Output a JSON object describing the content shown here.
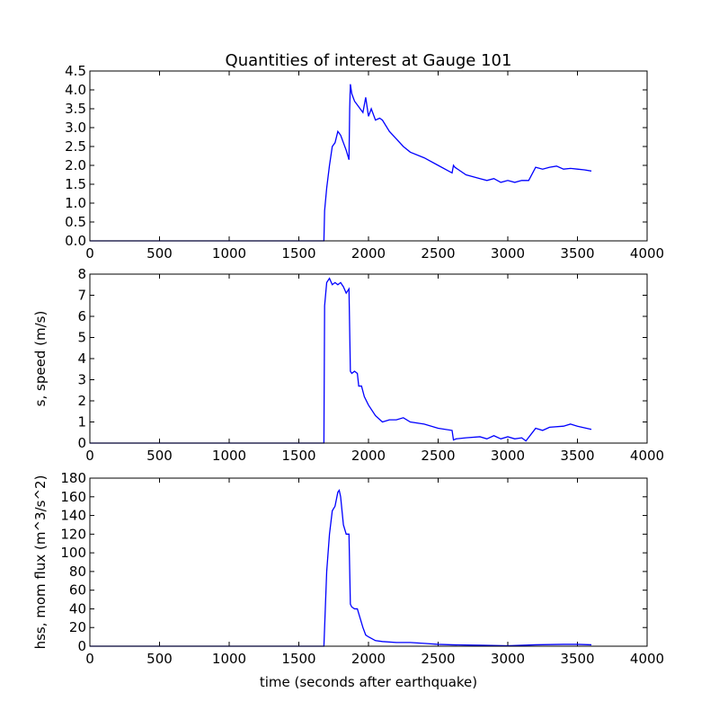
{
  "chart_data": [
    {
      "type": "line",
      "title": "Quantities of interest at Gauge 101",
      "x": [
        0,
        1680,
        1685,
        1700,
        1720,
        1740,
        1760,
        1780,
        1800,
        1820,
        1840,
        1860,
        1865,
        1870,
        1880,
        1900,
        1920,
        1940,
        1960,
        1980,
        2000,
        2020,
        2050,
        2080,
        2100,
        2150,
        2200,
        2250,
        2300,
        2400,
        2500,
        2600,
        2610,
        2620,
        2700,
        2800,
        2850,
        2900,
        2950,
        3000,
        3050,
        3100,
        3150,
        3200,
        3250,
        3300,
        3350,
        3400,
        3450,
        3500,
        3550,
        3600
      ],
      "series": [
        {
          "color": "#0000ff",
          "values": [
            0,
            0,
            0.8,
            1.4,
            2.0,
            2.5,
            2.6,
            2.9,
            2.8,
            2.6,
            2.4,
            2.15,
            3.5,
            4.15,
            3.9,
            3.7,
            3.6,
            3.5,
            3.4,
            3.8,
            3.3,
            3.5,
            3.2,
            3.25,
            3.2,
            2.9,
            2.7,
            2.5,
            2.35,
            2.2,
            2.0,
            1.8,
            2.0,
            1.95,
            1.75,
            1.65,
            1.6,
            1.65,
            1.55,
            1.6,
            1.55,
            1.6,
            1.6,
            1.95,
            1.9,
            1.95,
            1.98,
            1.9,
            1.92,
            1.9,
            1.88,
            1.85
          ]
        }
      ],
      "xlim": [
        0,
        4000
      ],
      "xticks": [
        0,
        500,
        1000,
        1500,
        2000,
        2500,
        3000,
        3500,
        4000
      ],
      "ylim": [
        0,
        4.5
      ],
      "yticks": [
        {
          "value": 0,
          "label": "0.0"
        },
        {
          "value": 0.5,
          "label": "0.5"
        },
        {
          "value": 1,
          "label": "1.0"
        },
        {
          "value": 1.5,
          "label": "1.5"
        },
        {
          "value": 2,
          "label": "2.0"
        },
        {
          "value": 2.5,
          "label": "2.5"
        },
        {
          "value": 3,
          "label": "3.0"
        },
        {
          "value": 3.5,
          "label": "3.5"
        },
        {
          "value": 4,
          "label": "4.0"
        },
        {
          "value": 4.5,
          "label": "4.5"
        }
      ]
    },
    {
      "type": "line",
      "ylabel": "s, speed (m/s)",
      "x": [
        0,
        1680,
        1685,
        1700,
        1720,
        1740,
        1760,
        1780,
        1800,
        1820,
        1840,
        1860,
        1870,
        1880,
        1900,
        1920,
        1930,
        1950,
        1970,
        2000,
        2050,
        2100,
        2150,
        2200,
        2250,
        2300,
        2400,
        2500,
        2600,
        2610,
        2630,
        2700,
        2800,
        2850,
        2900,
        2950,
        3000,
        3050,
        3100,
        3130,
        3200,
        3250,
        3300,
        3400,
        3450,
        3500,
        3600
      ],
      "series": [
        {
          "color": "#0000ff",
          "values": [
            0,
            0,
            6.5,
            7.6,
            7.8,
            7.5,
            7.6,
            7.5,
            7.6,
            7.4,
            7.1,
            7.3,
            3.4,
            3.3,
            3.4,
            3.3,
            2.7,
            2.7,
            2.2,
            1.8,
            1.3,
            1.0,
            1.1,
            1.1,
            1.2,
            1.0,
            0.9,
            0.7,
            0.6,
            0.15,
            0.2,
            0.25,
            0.3,
            0.2,
            0.35,
            0.2,
            0.3,
            0.2,
            0.25,
            0.1,
            0.7,
            0.6,
            0.75,
            0.8,
            0.9,
            0.8,
            0.65
          ]
        }
      ],
      "xlim": [
        0,
        4000
      ],
      "xticks": [
        0,
        500,
        1000,
        1500,
        2000,
        2500,
        3000,
        3500,
        4000
      ],
      "ylim": [
        0,
        8
      ],
      "yticks": [
        0,
        1,
        2,
        3,
        4,
        5,
        6,
        7,
        8
      ]
    },
    {
      "type": "line",
      "ylabel": "hss, mom flux (m^3/s^2)",
      "xlabel": "time (seconds after earthquake)",
      "x": [
        0,
        1680,
        1690,
        1700,
        1720,
        1740,
        1760,
        1780,
        1790,
        1800,
        1820,
        1840,
        1860,
        1870,
        1880,
        1900,
        1920,
        1940,
        1960,
        1980,
        2000,
        2050,
        2100,
        2200,
        2300,
        2400,
        2500,
        2600,
        2800,
        3000,
        3200,
        3400,
        3500,
        3600
      ],
      "series": [
        {
          "color": "#0000ff",
          "values": [
            0,
            0,
            40,
            80,
            120,
            145,
            150,
            165,
            167,
            160,
            130,
            120,
            120,
            45,
            42,
            40,
            40,
            30,
            20,
            12,
            10,
            6,
            5,
            4,
            4,
            3,
            2,
            1.5,
            1,
            0.5,
            1.5,
            2,
            2,
            1.5
          ]
        }
      ],
      "xlim": [
        0,
        4000
      ],
      "xticks": [
        0,
        500,
        1000,
        1500,
        2000,
        2500,
        3000,
        3500,
        4000
      ],
      "ylim": [
        0,
        180
      ],
      "yticks": [
        0,
        20,
        40,
        60,
        80,
        100,
        120,
        140,
        160,
        180
      ]
    }
  ]
}
